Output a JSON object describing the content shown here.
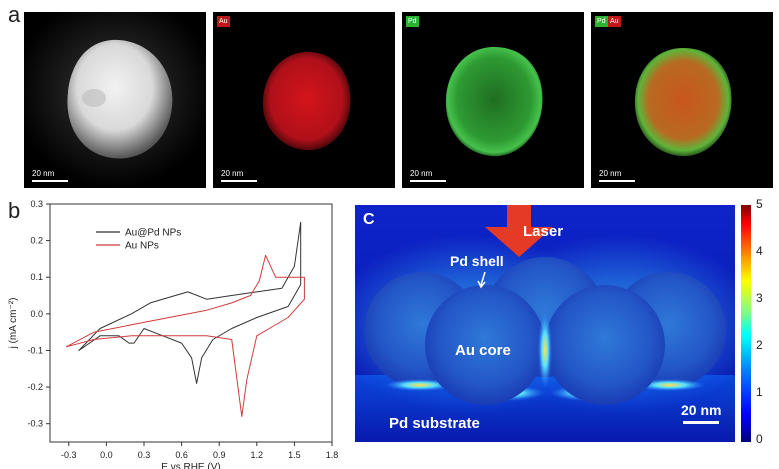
{
  "panel_a": {
    "letter": "a",
    "images": [
      {
        "tags": [],
        "scale": "20 nm"
      },
      {
        "tags": [
          {
            "text": "Au",
            "color": "#c01818"
          }
        ],
        "scale": "20 nm"
      },
      {
        "tags": [
          {
            "text": "Pd",
            "color": "#29b32f"
          }
        ],
        "scale": "20 nm"
      },
      {
        "tags": [
          {
            "text": "Pd",
            "color": "#29b32f"
          },
          {
            "text": "Au",
            "color": "#c01818"
          }
        ],
        "scale": "20 nm"
      }
    ]
  },
  "panel_b": {
    "letter": "b",
    "chart_data": {
      "type": "line",
      "xlabel": "E vs.RHE (V)",
      "ylabel": "j (mA cm⁻²)",
      "xlim": [
        -0.45,
        1.8
      ],
      "ylim": [
        -0.35,
        0.3
      ],
      "xticks": [
        "-0.3",
        "0.0",
        "0.3",
        "0.6",
        "0.9",
        "1.2",
        "1.5",
        "1.8"
      ],
      "yticks": [
        "-0.3",
        "-0.2",
        "-0.1",
        "0.0",
        "0.1",
        "0.2",
        "0.3"
      ],
      "legend_position": "top-left",
      "series": [
        {
          "name": "Au@Pd NPs",
          "color": "#333333",
          "x": [
            -0.22,
            -0.05,
            0.2,
            0.35,
            0.55,
            0.65,
            0.8,
            1.0,
            1.2,
            1.4,
            1.5,
            1.55,
            1.55,
            1.45,
            1.2,
            1.0,
            0.85,
            0.76,
            0.72,
            0.68,
            0.6,
            0.45,
            0.3,
            0.22,
            0.18,
            0.1,
            -0.05,
            -0.22
          ],
          "y": [
            -0.1,
            -0.04,
            0.0,
            0.03,
            0.05,
            0.06,
            0.04,
            0.05,
            0.06,
            0.07,
            0.13,
            0.25,
            0.08,
            0.02,
            -0.01,
            -0.04,
            -0.07,
            -0.12,
            -0.19,
            -0.12,
            -0.08,
            -0.06,
            -0.04,
            -0.08,
            -0.08,
            -0.06,
            -0.06,
            -0.1
          ]
        },
        {
          "name": "Au NPs",
          "color": "#d03b3b",
          "x": [
            -0.32,
            -0.1,
            0.2,
            0.5,
            0.8,
            1.0,
            1.15,
            1.22,
            1.27,
            1.35,
            1.5,
            1.58,
            1.58,
            1.45,
            1.3,
            1.2,
            1.12,
            1.08,
            1.0,
            0.8,
            0.5,
            0.2,
            -0.1,
            -0.32
          ],
          "y": [
            -0.09,
            -0.05,
            -0.03,
            -0.01,
            0.01,
            0.03,
            0.05,
            0.09,
            0.16,
            0.1,
            0.1,
            0.1,
            0.04,
            -0.01,
            -0.04,
            -0.06,
            -0.18,
            -0.28,
            -0.07,
            -0.06,
            -0.06,
            -0.06,
            -0.07,
            -0.09
          ]
        }
      ]
    }
  },
  "panel_c": {
    "letter": "C",
    "labels": {
      "laser": "Laser",
      "shell": "Pd shell",
      "core": "Au core",
      "substrate": "Pd substrate",
      "scale": "20 nm"
    },
    "colorbar": {
      "ticks": [
        "5",
        "4",
        "3",
        "2",
        "1",
        "0"
      ],
      "min": 0,
      "max": 5
    }
  }
}
